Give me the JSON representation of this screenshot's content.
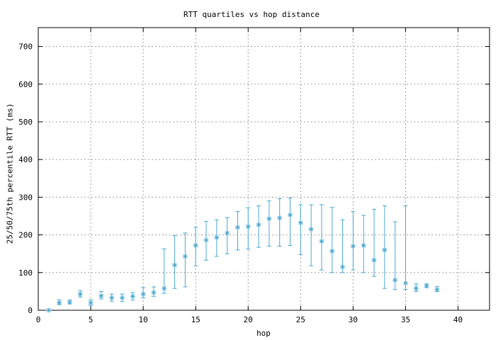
{
  "chart_data": {
    "type": "scatter",
    "title": "RTT quartiles vs hop distance",
    "xlabel": "hop",
    "ylabel": "25/50/75th percentile RTT (ms)",
    "xlim": [
      0,
      43
    ],
    "ylim": [
      0,
      750
    ],
    "xticks": [
      0,
      5,
      10,
      15,
      20,
      25,
      30,
      35,
      40
    ],
    "yticks": [
      0,
      100,
      200,
      300,
      400,
      500,
      600,
      700
    ],
    "grid": true,
    "color": "#4aa8cf",
    "series": [
      {
        "points": [
          {
            "x": 1,
            "q1": 0,
            "median": 0,
            "q3": 0
          },
          {
            "x": 2,
            "q1": 15,
            "median": 20,
            "q3": 28
          },
          {
            "x": 3,
            "q1": 17,
            "median": 21,
            "q3": 27
          },
          {
            "x": 4,
            "q1": 35,
            "median": 43,
            "q3": 52
          },
          {
            "x": 5,
            "q1": 13,
            "median": 20,
            "q3": 28
          },
          {
            "x": 6,
            "q1": 30,
            "median": 38,
            "q3": 50
          },
          {
            "x": 7,
            "q1": 24,
            "median": 33,
            "q3": 43
          },
          {
            "x": 8,
            "q1": 23,
            "median": 33,
            "q3": 43
          },
          {
            "x": 9,
            "q1": 27,
            "median": 37,
            "q3": 47
          },
          {
            "x": 10,
            "q1": 33,
            "median": 43,
            "q3": 60
          },
          {
            "x": 11,
            "q1": 37,
            "median": 47,
            "q3": 62
          },
          {
            "x": 12,
            "q1": 45,
            "median": 58,
            "q3": 163
          },
          {
            "x": 13,
            "q1": 58,
            "median": 120,
            "q3": 198
          },
          {
            "x": 14,
            "q1": 62,
            "median": 143,
            "q3": 205
          },
          {
            "x": 15,
            "q1": 118,
            "median": 172,
            "q3": 220
          },
          {
            "x": 16,
            "q1": 133,
            "median": 186,
            "q3": 236
          },
          {
            "x": 17,
            "q1": 143,
            "median": 193,
            "q3": 240
          },
          {
            "x": 18,
            "q1": 150,
            "median": 205,
            "q3": 246
          },
          {
            "x": 19,
            "q1": 160,
            "median": 220,
            "q3": 262
          },
          {
            "x": 20,
            "q1": 162,
            "median": 222,
            "q3": 272
          },
          {
            "x": 21,
            "q1": 167,
            "median": 227,
            "q3": 277
          },
          {
            "x": 22,
            "q1": 170,
            "median": 243,
            "q3": 290
          },
          {
            "x": 23,
            "q1": 170,
            "median": 245,
            "q3": 296
          },
          {
            "x": 24,
            "q1": 172,
            "median": 253,
            "q3": 298
          },
          {
            "x": 25,
            "q1": 148,
            "median": 232,
            "q3": 280
          },
          {
            "x": 26,
            "q1": 118,
            "median": 215,
            "q3": 280
          },
          {
            "x": 27,
            "q1": 107,
            "median": 183,
            "q3": 280
          },
          {
            "x": 28,
            "q1": 100,
            "median": 157,
            "q3": 273
          },
          {
            "x": 29,
            "q1": 100,
            "median": 115,
            "q3": 240
          },
          {
            "x": 30,
            "q1": 107,
            "median": 170,
            "q3": 262
          },
          {
            "x": 31,
            "q1": 100,
            "median": 172,
            "q3": 252
          },
          {
            "x": 32,
            "q1": 90,
            "median": 133,
            "q3": 268
          },
          {
            "x": 33,
            "q1": 58,
            "median": 160,
            "q3": 277
          },
          {
            "x": 34,
            "q1": 55,
            "median": 80,
            "q3": 235
          },
          {
            "x": 35,
            "q1": 55,
            "median": 72,
            "q3": 277
          },
          {
            "x": 36,
            "q1": 50,
            "median": 58,
            "q3": 70
          },
          {
            "x": 37,
            "q1": 60,
            "median": 65,
            "q3": 70
          },
          {
            "x": 38,
            "q1": 50,
            "median": 55,
            "q3": 63
          }
        ]
      }
    ]
  }
}
